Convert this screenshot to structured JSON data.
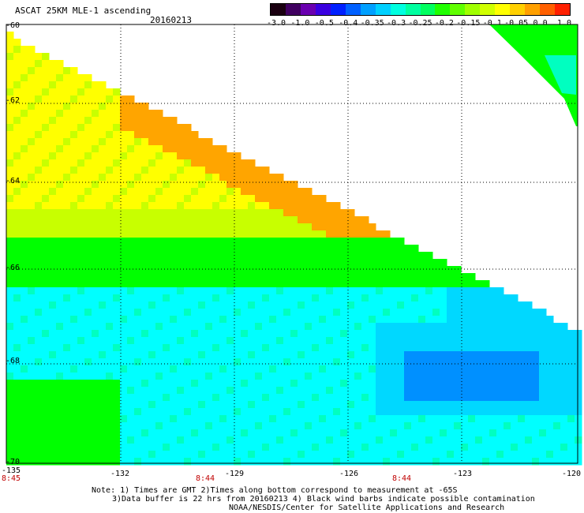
{
  "header": {
    "title": "ASCAT 25KM MLE-1 ascending",
    "date": "20160213"
  },
  "colorbar": {
    "tick_labels": [
      "-3.0",
      "-1.0",
      "-0.5",
      "-0.4",
      "-0.35",
      "-0.3",
      "-0.25",
      "-0.2",
      "-0.15",
      "-0.1",
      "-0.05",
      "0.0",
      "1.0"
    ],
    "colors": [
      "#1a0010",
      "#400060",
      "#6a00b0",
      "#3a00e0",
      "#0020ff",
      "#0060ff",
      "#00a0ff",
      "#00d0ff",
      "#00ffe0",
      "#00ffa0",
      "#00ff60",
      "#20ff00",
      "#60ff00",
      "#a0ff00",
      "#d0ff00",
      "#ffff00",
      "#ffd000",
      "#ffa000",
      "#ff6000",
      "#ff2000"
    ]
  },
  "map": {
    "lon_labels": [
      "-135",
      "-132",
      "-129",
      "-126",
      "-123",
      "-120"
    ],
    "lat_labels": [
      "-60",
      "-62",
      "-64",
      "-66",
      "-68",
      "-70"
    ],
    "time_labels": [
      "8:45",
      "8:44",
      "8:44"
    ],
    "legend_colors": {
      "orange": "#ffa500",
      "yellow": "#ffff00",
      "yellow_green": "#c8ff00",
      "green": "#00ff00",
      "cyan_green": "#00ffc0",
      "cyan": "#00ffff",
      "light_blue": "#00d8ff",
      "blue": "#0090ff"
    }
  },
  "notes": {
    "line1": "Note: 1) Times are GMT 2)Times along bottom correspond to measurement at -65S",
    "line2": "3)Data buffer is 22 hrs from 20160213 4) Black wind barbs indicate possible contamination",
    "line3": "NOAA/NESDIS/Center for Satellite Applications and Research"
  }
}
